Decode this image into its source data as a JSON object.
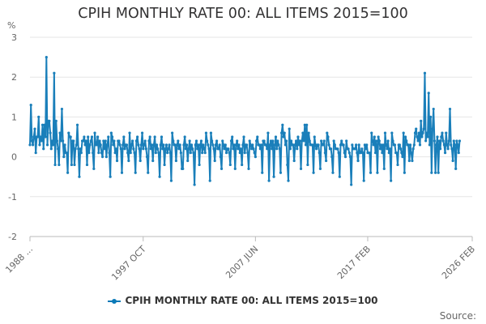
{
  "title": "CPIH MONTHLY RATE 00: ALL ITEMS 2015=100",
  "source": "Source:",
  "colors": {
    "series": "#1a7fba",
    "grid": "#e6e6e6",
    "axis": "#bbbbbb"
  },
  "chart_data": {
    "type": "line",
    "title": "CPIH MONTHLY RATE 00: ALL ITEMS 2015=100",
    "ylabel": "%",
    "xlabel": "",
    "ylim": [
      -2,
      3
    ],
    "yticks": [
      -2,
      -1,
      0,
      1,
      2,
      3
    ],
    "x_start": "1988 JAN",
    "x_end": "2026 FEB",
    "xticks": [
      {
        "label": "1988 ...",
        "month_index": 0
      },
      {
        "label": "1997 OCT",
        "month_index": 117
      },
      {
        "label": "2007 JUN",
        "month_index": 233
      },
      {
        "label": "2017 FEB",
        "month_index": 349
      },
      {
        "label": "2026 FEB",
        "month_index": 457
      }
    ],
    "series": [
      {
        "name": "CPIH MONTHLY RATE 00: ALL ITEMS 2015=100",
        "values": [
          0.3,
          1.3,
          0.4,
          0.3,
          0.5,
          0.7,
          0.1,
          0.5,
          0.5,
          1.0,
          0.3,
          0.5,
          0.4,
          0.8,
          0.2,
          0.8,
          0.5,
          2.5,
          0.3,
          0.9,
          0.9,
          0.6,
          0.2,
          0.4,
          0.3,
          2.1,
          -0.2,
          0.9,
          0.4,
          0.2,
          -0.2,
          0.6,
          0.4,
          1.2,
          0.4,
          0.0,
          0.3,
          0.1,
          0.1,
          -0.4,
          0.6,
          0.5,
          0.5,
          -0.2,
          0.4,
          0.4,
          -0.2,
          0.2,
          0.3,
          0.8,
          0.2,
          -0.5,
          0.2,
          0.1,
          0.4,
          0.4,
          0.5,
          0.3,
          0.4,
          -0.2,
          0.5,
          0.1,
          0.3,
          0.4,
          0.5,
          0.1,
          -0.3,
          0.6,
          0.3,
          0.3,
          0.5,
          0.1,
          0.4,
          0.3,
          0.1,
          0.0,
          0.4,
          0.2,
          0.4,
          0.0,
          0.3,
          0.5,
          0.1,
          -0.5,
          0.6,
          0.5,
          0.3,
          0.4,
          0.1,
          0.2,
          -0.1,
          0.4,
          0.4,
          0.3,
          0.2,
          -0.4,
          0.3,
          0.5,
          0.2,
          0.3,
          0.3,
          0.1,
          -0.1,
          0.6,
          0.1,
          0.3,
          0.4,
          0.2,
          0.1,
          -0.4,
          0.4,
          0.5,
          0.3,
          0.2,
          -0.1,
          0.3,
          0.6,
          0.2,
          0.3,
          0.4,
          0.2,
          0.0,
          -0.4,
          0.4,
          0.5,
          0.2,
          0.3,
          -0.1,
          0.3,
          0.5,
          0.1,
          0.3,
          0.2,
          0.1,
          -0.5,
          0.3,
          0.5,
          0.2,
          0.3,
          -0.2,
          0.2,
          0.3,
          0.1,
          0.2,
          0.3,
          0.1,
          -0.6,
          0.6,
          0.4,
          0.3,
          0.3,
          -0.1,
          0.3,
          0.4,
          0.2,
          0.3,
          0.1,
          -0.3,
          -0.3,
          0.3,
          0.5,
          0.2,
          0.3,
          -0.1,
          0.2,
          0.4,
          0.1,
          0.3,
          0.2,
          0.1,
          -0.7,
          0.3,
          0.4,
          0.2,
          0.3,
          -0.2,
          0.3,
          0.4,
          0.1,
          0.3,
          0.2,
          0.1,
          0.6,
          0.4,
          0.3,
          0.2,
          -0.6,
          0.6,
          0.4,
          0.3,
          0.2,
          -0.1,
          0.3,
          0.4,
          0.2,
          0.2,
          0.3,
          0.0,
          -0.3,
          0.4,
          0.3,
          0.2,
          0.3,
          0.1,
          0.2,
          0.2,
          0.1,
          -0.2,
          0.4,
          0.5,
          0.2,
          0.3,
          -0.3,
          0.3,
          0.4,
          0.2,
          0.3,
          0.1,
          0.2,
          -0.2,
          0.3,
          0.5,
          0.1,
          0.3,
          0.3,
          0.1,
          -0.3,
          0.4,
          0.3,
          0.2,
          0.3,
          0.2,
          0.1,
          0.0,
          0.4,
          0.5,
          0.3,
          0.3,
          0.2,
          0.3,
          -0.4,
          0.4,
          0.4,
          0.3,
          0.3,
          0.2,
          0.6,
          -0.6,
          0.3,
          0.4,
          0.2,
          0.4,
          -0.5,
          0.3,
          0.5,
          0.2,
          0.4,
          0.3,
          0.2,
          -0.4,
          0.6,
          0.8,
          0.5,
          0.6,
          0.3,
          0.4,
          -0.2,
          -0.6,
          0.7,
          0.2,
          0.4,
          0.3,
          0.3,
          -0.1,
          0.3,
          0.4,
          0.2,
          0.5,
          0.3,
          0.4,
          -0.3,
          0.4,
          0.6,
          0.4,
          0.8,
          0.3,
          0.8,
          -0.2,
          0.6,
          0.4,
          0.3,
          0.3,
          0.3,
          -0.4,
          0.5,
          0.3,
          0.2,
          0.3,
          0.3,
          0.1,
          -0.3,
          0.4,
          0.3,
          0.3,
          0.4,
          0.1,
          -0.1,
          0.6,
          0.5,
          0.3,
          0.2,
          0.2,
          0.0,
          -0.4,
          0.4,
          0.3,
          0.2,
          0.2,
          0.2,
          0.1,
          -0.5,
          0.3,
          0.4,
          0.3,
          0.3,
          0.1,
          0.0,
          0.4,
          0.2,
          0.2,
          0.1,
          0.0,
          -0.7,
          0.3,
          0.2,
          0.2,
          0.2,
          0.3,
          0.1,
          -0.1,
          0.3,
          0.1,
          0.1,
          0.2,
          0.1,
          -0.6,
          0.3,
          0.2,
          0.3,
          0.1,
          0.1,
          0.1,
          -0.4,
          0.6,
          0.4,
          0.3,
          0.5,
          0.1,
          0.4,
          -0.4,
          0.5,
          0.4,
          0.2,
          0.3,
          0.1,
          0.3,
          -0.3,
          0.6,
          0.3,
          0.2,
          0.4,
          0.1,
          0.2,
          -0.6,
          0.6,
          0.4,
          0.3,
          0.3,
          0.1,
          0.1,
          -0.2,
          0.3,
          0.3,
          0.2,
          0.1,
          0.0,
          0.6,
          -0.4,
          0.5,
          0.4,
          0.3,
          0.3,
          -0.1,
          0.3,
          0.1,
          -0.1,
          0.2,
          0.3,
          0.6,
          0.7,
          0.5,
          0.4,
          0.6,
          0.3,
          0.9,
          0.5,
          0.6,
          0.7,
          2.1,
          0.4,
          0.6,
          0.5,
          1.6,
          0.3,
          1.0,
          -0.4,
          0.7,
          1.2,
          0.4,
          -0.4,
          0.3,
          0.5,
          -0.4,
          0.4,
          0.2,
          0.5,
          0.6,
          0.4,
          0.3,
          0.1,
          0.6,
          0.3,
          0.2,
          0.4,
          1.2,
          0.3,
          0.2,
          -0.1,
          0.4,
          0.3,
          -0.3,
          0.4,
          0.3,
          0.1,
          0.4
        ]
      }
    ]
  }
}
